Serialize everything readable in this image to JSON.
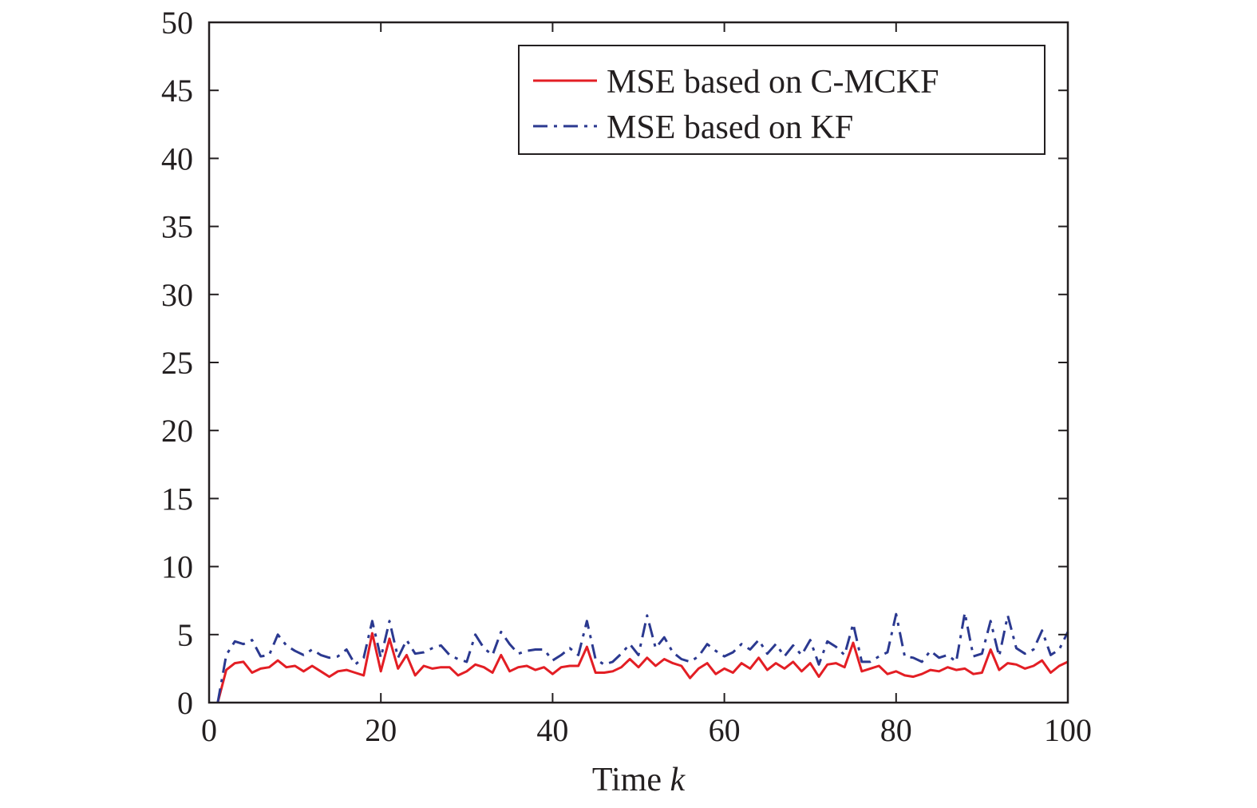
{
  "chart_data": {
    "type": "line",
    "title": "",
    "xlabel": "Time",
    "xlabel_var": "k",
    "ylabel": "",
    "xlim": [
      0,
      100
    ],
    "ylim": [
      0,
      50
    ],
    "xticks": [
      0,
      20,
      40,
      60,
      80,
      100
    ],
    "yticks": [
      0,
      5,
      10,
      15,
      20,
      25,
      30,
      35,
      40,
      45,
      50
    ],
    "grid": false,
    "legend_position": "top-right",
    "x": [
      1,
      2,
      3,
      4,
      5,
      6,
      7,
      8,
      9,
      10,
      11,
      12,
      13,
      14,
      15,
      16,
      17,
      18,
      19,
      20,
      21,
      22,
      23,
      24,
      25,
      26,
      27,
      28,
      29,
      30,
      31,
      32,
      33,
      34,
      35,
      36,
      37,
      38,
      39,
      40,
      41,
      42,
      43,
      44,
      45,
      46,
      47,
      48,
      49,
      50,
      51,
      52,
      53,
      54,
      55,
      56,
      57,
      58,
      59,
      60,
      61,
      62,
      63,
      64,
      65,
      66,
      67,
      68,
      69,
      70,
      71,
      72,
      73,
      74,
      75,
      76,
      77,
      78,
      79,
      80,
      81,
      82,
      83,
      84,
      85,
      86,
      87,
      88,
      89,
      90,
      91,
      92,
      93,
      94,
      95,
      96,
      97,
      98,
      99,
      100
    ],
    "series": [
      {
        "name": "MSE based on C-MCKF",
        "color": "#e31e24",
        "style": "solid",
        "values": [
          0,
          2.4,
          2.9,
          3.0,
          2.2,
          2.5,
          2.6,
          3.1,
          2.6,
          2.7,
          2.3,
          2.7,
          2.3,
          1.9,
          2.3,
          2.4,
          2.2,
          2.0,
          5.1,
          2.3,
          4.7,
          2.5,
          3.5,
          2.0,
          2.7,
          2.5,
          2.6,
          2.6,
          2.0,
          2.3,
          2.8,
          2.6,
          2.2,
          3.5,
          2.3,
          2.6,
          2.7,
          2.4,
          2.6,
          2.1,
          2.6,
          2.7,
          2.7,
          4.1,
          2.2,
          2.2,
          2.3,
          2.6,
          3.2,
          2.6,
          3.3,
          2.7,
          3.2,
          2.9,
          2.7,
          1.8,
          2.5,
          2.9,
          2.1,
          2.5,
          2.2,
          2.9,
          2.5,
          3.3,
          2.4,
          2.9,
          2.5,
          3.0,
          2.3,
          2.9,
          1.9,
          2.8,
          2.9,
          2.6,
          4.4,
          2.3,
          2.5,
          2.7,
          2.1,
          2.3,
          2.0,
          1.9,
          2.1,
          2.4,
          2.3,
          2.6,
          2.4,
          2.5,
          2.1,
          2.2,
          3.9,
          2.4,
          2.9,
          2.8,
          2.5,
          2.7,
          3.1,
          2.2,
          2.7,
          3.0
        ]
      },
      {
        "name": "MSE based on KF",
        "color": "#2b3990",
        "style": "dashdot",
        "values": [
          0,
          3.5,
          4.5,
          4.3,
          4.6,
          3.4,
          3.5,
          5.0,
          4.2,
          3.8,
          3.5,
          3.9,
          3.5,
          3.3,
          3.4,
          3.9,
          2.8,
          3.3,
          6.0,
          3.3,
          6.0,
          3.3,
          4.6,
          3.6,
          3.7,
          4.0,
          4.2,
          3.5,
          3.2,
          3.0,
          5.0,
          4.0,
          3.5,
          5.2,
          4.3,
          3.6,
          3.8,
          3.9,
          3.9,
          3.1,
          3.5,
          4.0,
          3.5,
          6.0,
          3.2,
          2.8,
          3.0,
          3.6,
          4.3,
          3.5,
          6.4,
          4.0,
          4.8,
          3.7,
          3.2,
          3.0,
          3.4,
          4.3,
          3.8,
          3.4,
          3.7,
          4.3,
          3.9,
          4.6,
          3.6,
          4.3,
          3.4,
          4.2,
          3.5,
          4.6,
          2.8,
          4.5,
          4.1,
          3.5,
          5.8,
          3.0,
          3.0,
          3.4,
          3.7,
          6.5,
          3.4,
          3.3,
          3.0,
          3.8,
          3.3,
          3.5,
          3.0,
          6.6,
          3.4,
          3.6,
          6.0,
          3.4,
          6.4,
          4.0,
          3.6,
          3.9,
          5.3,
          3.5,
          3.9,
          5.2
        ]
      }
    ]
  }
}
